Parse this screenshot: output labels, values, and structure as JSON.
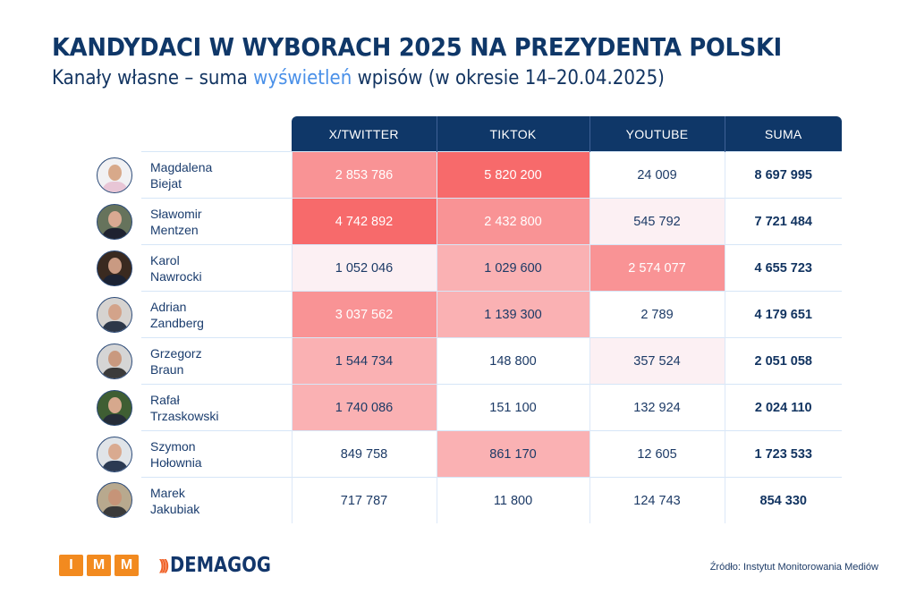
{
  "header": {
    "title": "KANDYDACI W WYBORACH 2025 NA PREZYDENTA POLSKI",
    "subtitle_before": "Kanały własne – suma ",
    "subtitle_accent": "wyświetleń",
    "subtitle_after": " wpisów (w okresie 14–20.04.2025)"
  },
  "colors": {
    "header_bg": "#0f3768",
    "accent": "#4a90e8",
    "heat_levels": [
      "#ffffff",
      "#fcf0f3",
      "#fab1b3",
      "#f99395",
      "#f76a6b"
    ]
  },
  "chart_data": {
    "type": "table",
    "title": "KANDYDACI W WYBORACH 2025 NA PREZYDENTA POLSKI",
    "subtitle": "Kanały własne – suma wyświetleń wpisów (w okresie 14–20.04.2025)",
    "columns": [
      "X/TWITTER",
      "TIKTOK",
      "YOUTUBE",
      "SUMA"
    ],
    "rows": [
      {
        "first": "Magdalena",
        "last": "Biejat",
        "x": "2 853 786",
        "tiktok": "5 820 200",
        "youtube": "24 009",
        "sum": "8 697 995",
        "heat": [
          3,
          4,
          0
        ]
      },
      {
        "first": "Sławomir",
        "last": "Mentzen",
        "x": "4 742 892",
        "tiktok": "2 432 800",
        "youtube": "545 792",
        "sum": "7 721 484",
        "heat": [
          4,
          3,
          1
        ]
      },
      {
        "first": "Karol",
        "last": "Nawrocki",
        "x": "1 052 046",
        "tiktok": "1 029 600",
        "youtube": "2 574 077",
        "sum": "4 655 723",
        "heat": [
          1,
          2,
          3
        ]
      },
      {
        "first": "Adrian",
        "last": "Zandberg",
        "x": "3 037 562",
        "tiktok": "1 139 300",
        "youtube": "2 789",
        "sum": "4 179 651",
        "heat": [
          3,
          2,
          0
        ]
      },
      {
        "first": "Grzegorz",
        "last": "Braun",
        "x": "1 544 734",
        "tiktok": "148 800",
        "youtube": "357 524",
        "sum": "2 051 058",
        "heat": [
          2,
          0,
          1
        ]
      },
      {
        "first": "Rafał",
        "last": "Trzaskowski",
        "x": "1 740 086",
        "tiktok": "151 100",
        "youtube": "132 924",
        "sum": "2 024 110",
        "heat": [
          2,
          0,
          0
        ]
      },
      {
        "first": "Szymon",
        "last": "Hołownia",
        "x": "849 758",
        "tiktok": "861 170",
        "youtube": "12 605",
        "sum": "1 723 533",
        "heat": [
          0,
          2,
          0
        ]
      },
      {
        "first": "Marek",
        "last": "Jakubiak",
        "x": "717 787",
        "tiktok": "11 800",
        "youtube": "124 743",
        "sum": "854 330",
        "heat": [
          0,
          0,
          0
        ]
      }
    ],
    "values": {
      "X/TWITTER": [
        2853786,
        4742892,
        1052046,
        3037562,
        1544734,
        1740086,
        849758,
        717787
      ],
      "TIKTOK": [
        5820200,
        2432800,
        1029600,
        1139300,
        148800,
        151100,
        861170,
        11800
      ],
      "YOUTUBE": [
        24009,
        545792,
        2574077,
        2789,
        357524,
        132924,
        12605,
        124743
      ],
      "SUMA": [
        8697995,
        7721484,
        4655723,
        4179651,
        2051058,
        2024110,
        1723533,
        854330
      ]
    }
  },
  "avatars": [
    {
      "icon": "person-photo-icon",
      "bg": "#f1f1f3",
      "head": "#d8a98a",
      "body": "#e8c6d6"
    },
    {
      "icon": "person-photo-icon",
      "bg": "#66735c",
      "head": "#d9a992",
      "body": "#1e2230"
    },
    {
      "icon": "person-photo-icon",
      "bg": "#3a2a20",
      "head": "#c99a82",
      "body": "#1b2233"
    },
    {
      "icon": "person-photo-icon",
      "bg": "#d6d3d0",
      "head": "#d3a38a",
      "body": "#2d3748"
    },
    {
      "icon": "person-photo-icon",
      "bg": "#d5d5d5",
      "head": "#c9997f",
      "body": "#3b3b3b"
    },
    {
      "icon": "person-photo-icon",
      "bg": "#3f5e33",
      "head": "#d6a88d",
      "body": "#252c38"
    },
    {
      "icon": "person-photo-icon",
      "bg": "#e0e4e8",
      "head": "#d9aa90",
      "body": "#2b3a52"
    },
    {
      "icon": "person-photo-icon",
      "bg": "#b8a98e",
      "head": "#c69478",
      "body": "#3a3a3a"
    }
  ],
  "footer": {
    "imm_letters": [
      "I",
      "M",
      "M"
    ],
    "demagog_icon": "sound-waves-icon",
    "demagog_label": "DEMAGOG",
    "source": "Źródło: Instytut Monitorowania Mediów"
  }
}
